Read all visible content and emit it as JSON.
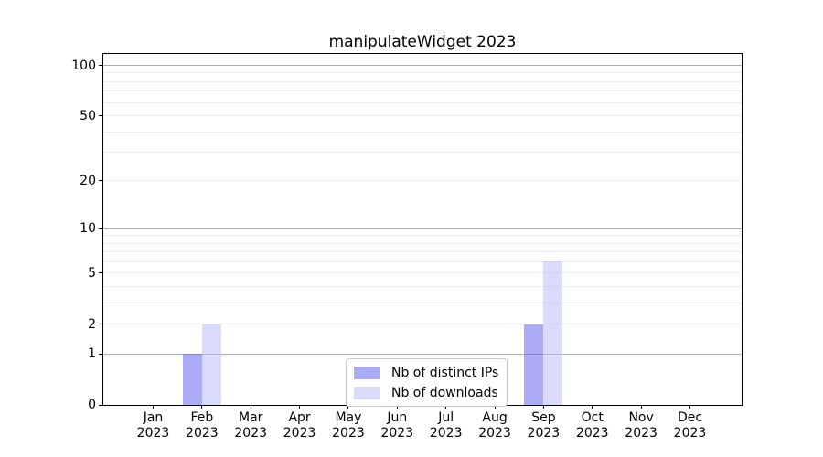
{
  "chart_data": {
    "type": "bar",
    "title": "manipulateWidget 2023",
    "categories": [
      "Jan",
      "Feb",
      "Mar",
      "Apr",
      "May",
      "Jun",
      "Jul",
      "Aug",
      "Sep",
      "Oct",
      "Nov",
      "Dec"
    ],
    "category_year": "2023",
    "series": [
      {
        "name": "Nb of distinct IPs",
        "key": "distinct-ips",
        "color": "rgba(102,102,238,0.55)",
        "values": [
          0,
          1,
          0,
          0,
          0,
          0,
          0,
          0,
          2,
          0,
          0,
          0
        ]
      },
      {
        "name": "Nb of downloads",
        "key": "downloads",
        "color": "rgba(187,187,247,0.55)",
        "values": [
          0,
          2,
          0,
          0,
          0,
          0,
          0,
          0,
          6,
          0,
          0,
          0
        ]
      }
    ],
    "xlabel": "",
    "ylabel": "",
    "yscale": "log1p",
    "ylim": [
      0,
      117
    ],
    "ytick_values": [
      0,
      1,
      2,
      5,
      10,
      20,
      50,
      100
    ],
    "ytick_labels": [
      "0",
      "1",
      "2",
      "5",
      "10",
      "20",
      "50",
      "100"
    ],
    "gridlines": {
      "major_values": [
        1,
        10,
        100
      ],
      "minor_values": [
        2,
        3,
        4,
        5,
        6,
        7,
        8,
        9,
        20,
        30,
        40,
        50,
        60,
        70,
        80,
        90
      ],
      "major_color": "#adadad",
      "minor_color": "#ececec"
    },
    "legend_position": "lower center"
  }
}
